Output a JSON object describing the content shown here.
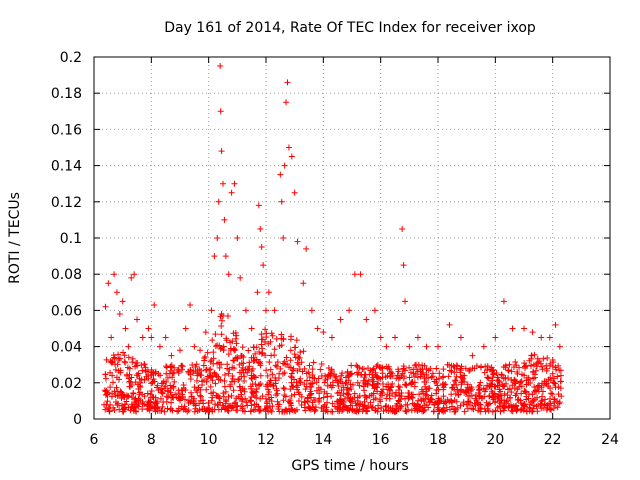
{
  "chart_data": {
    "type": "scatter",
    "title": "Day 161 of 2014, Rate Of TEC Index for receiver ixop",
    "xlabel": "GPS time / hours",
    "ylabel": "ROTI / TECUs",
    "xlim": [
      6,
      24
    ],
    "ylim": [
      0,
      0.2
    ],
    "x_ticks": [
      6,
      8,
      10,
      12,
      14,
      16,
      18,
      20,
      22,
      24
    ],
    "x_tick_labels": [
      "6",
      "8",
      "10",
      "12",
      "14",
      "16",
      "18",
      "20",
      "22",
      "24"
    ],
    "y_ticks": [
      0,
      0.02,
      0.04,
      0.06,
      0.08,
      0.1,
      0.12,
      0.14,
      0.16,
      0.18,
      0.2
    ],
    "y_tick_labels": [
      "0",
      "0.02",
      "0.04",
      "0.06",
      "0.08",
      "0.1",
      "0.12",
      "0.14",
      "0.16",
      "0.18",
      "0.2"
    ],
    "grid": true,
    "marker": "+",
    "color": "#ff0000",
    "data_range": {
      "x_min": 6.35,
      "x_max": 22.3
    },
    "series": [
      {
        "name": "ROTI",
        "points": [
          [
            6.4,
            0.062
          ],
          [
            6.5,
            0.075
          ],
          [
            6.6,
            0.045
          ],
          [
            6.7,
            0.08
          ],
          [
            6.8,
            0.07
          ],
          [
            6.9,
            0.058
          ],
          [
            7.0,
            0.065
          ],
          [
            7.1,
            0.05
          ],
          [
            7.2,
            0.04
          ],
          [
            7.3,
            0.078
          ],
          [
            7.4,
            0.08
          ],
          [
            7.5,
            0.055
          ],
          [
            7.7,
            0.045
          ],
          [
            7.9,
            0.05
          ],
          [
            8.0,
            0.045
          ],
          [
            8.1,
            0.063
          ],
          [
            8.3,
            0.04
          ],
          [
            8.5,
            0.045
          ],
          [
            8.7,
            0.035
          ],
          [
            9.0,
            0.038
          ],
          [
            9.2,
            0.05
          ],
          [
            9.35,
            0.063
          ],
          [
            9.5,
            0.04
          ],
          [
            9.7,
            0.038
          ],
          [
            9.9,
            0.048
          ],
          [
            10.1,
            0.06
          ],
          [
            10.2,
            0.09
          ],
          [
            10.3,
            0.1
          ],
          [
            10.35,
            0.12
          ],
          [
            10.4,
            0.195
          ],
          [
            10.42,
            0.17
          ],
          [
            10.45,
            0.148
          ],
          [
            10.5,
            0.13
          ],
          [
            10.55,
            0.11
          ],
          [
            10.6,
            0.09
          ],
          [
            10.7,
            0.08
          ],
          [
            10.8,
            0.125
          ],
          [
            10.9,
            0.13
          ],
          [
            11.0,
            0.1
          ],
          [
            11.1,
            0.078
          ],
          [
            11.3,
            0.06
          ],
          [
            11.5,
            0.05
          ],
          [
            11.7,
            0.07
          ],
          [
            11.75,
            0.118
          ],
          [
            11.8,
            0.105
          ],
          [
            11.85,
            0.095
          ],
          [
            11.9,
            0.085
          ],
          [
            12.0,
            0.06
          ],
          [
            12.1,
            0.07
          ],
          [
            12.3,
            0.06
          ],
          [
            12.5,
            0.135
          ],
          [
            12.55,
            0.12
          ],
          [
            12.6,
            0.1
          ],
          [
            12.65,
            0.14
          ],
          [
            12.7,
            0.175
          ],
          [
            12.75,
            0.186
          ],
          [
            12.8,
            0.15
          ],
          [
            12.9,
            0.145
          ],
          [
            13.0,
            0.125
          ],
          [
            13.1,
            0.098
          ],
          [
            13.3,
            0.075
          ],
          [
            13.4,
            0.094
          ],
          [
            13.6,
            0.06
          ],
          [
            13.8,
            0.05
          ],
          [
            14.0,
            0.048
          ],
          [
            14.3,
            0.045
          ],
          [
            14.6,
            0.055
          ],
          [
            14.9,
            0.06
          ],
          [
            15.1,
            0.08
          ],
          [
            15.3,
            0.08
          ],
          [
            15.5,
            0.055
          ],
          [
            15.8,
            0.06
          ],
          [
            16.0,
            0.045
          ],
          [
            16.2,
            0.04
          ],
          [
            16.5,
            0.045
          ],
          [
            16.75,
            0.105
          ],
          [
            16.8,
            0.085
          ],
          [
            16.85,
            0.065
          ],
          [
            17.0,
            0.04
          ],
          [
            17.3,
            0.045
          ],
          [
            17.6,
            0.04
          ],
          [
            18.0,
            0.04
          ],
          [
            18.4,
            0.052
          ],
          [
            18.8,
            0.045
          ],
          [
            19.2,
            0.035
          ],
          [
            19.6,
            0.04
          ],
          [
            20.0,
            0.045
          ],
          [
            20.3,
            0.065
          ],
          [
            20.6,
            0.05
          ],
          [
            21.0,
            0.05
          ],
          [
            21.3,
            0.048
          ],
          [
            21.6,
            0.045
          ],
          [
            21.9,
            0.045
          ],
          [
            22.1,
            0.052
          ],
          [
            22.25,
            0.04
          ]
        ]
      }
    ]
  }
}
